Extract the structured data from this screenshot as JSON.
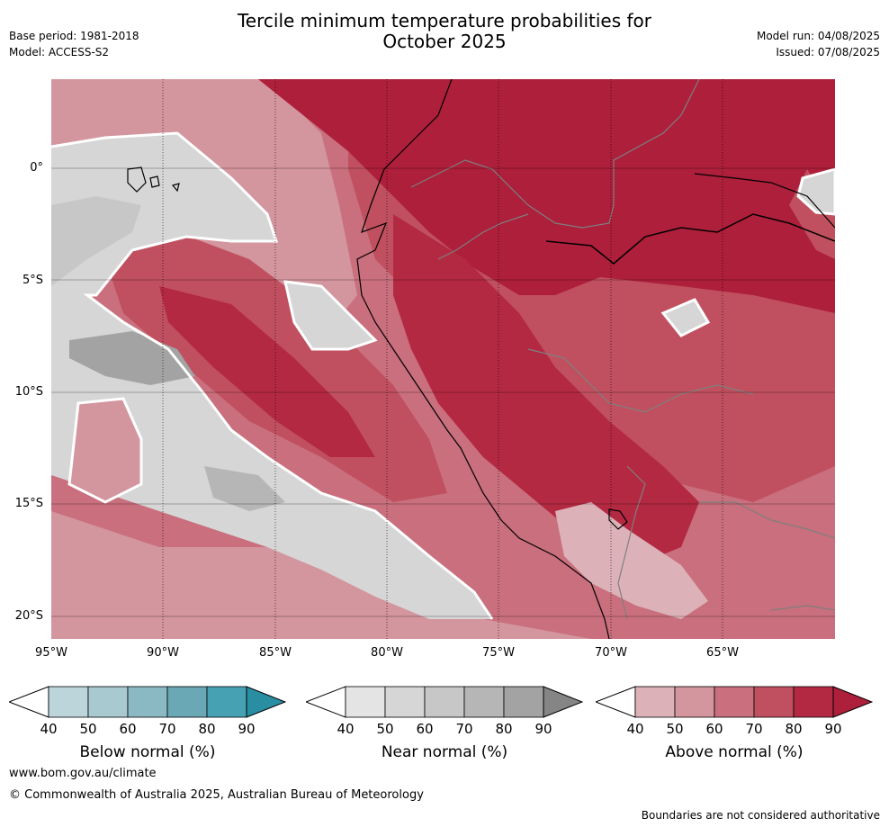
{
  "header": {
    "title_line1": "Tercile minimum temperature probabilities for",
    "title_line2": "October 2025",
    "base_period": "Base period: 1981-2018",
    "model": "Model: ACCESS-S2",
    "model_run": "Model run: 04/08/2025",
    "issued": "Issued: 07/08/2025"
  },
  "map": {
    "lat_labels": [
      "0°",
      "5°S",
      "10°S",
      "15°S",
      "20°S"
    ],
    "lon_labels": [
      "95°W",
      "90°W",
      "85°W",
      "80°W",
      "75°W",
      "70°W",
      "65°W"
    ],
    "colors": {
      "above_40": "#dcb2b8",
      "above_50": "#d3959e",
      "above_60": "#c96f7d",
      "above_70": "#c0505f",
      "above_80": "#b42942",
      "above_90": "#ad1f3b",
      "near_40": "#e4e4e4",
      "near_50": "#d6d6d6",
      "near_60": "#c7c7c7",
      "near_70": "#b6b6b6",
      "near_80": "#a3a3a3"
    }
  },
  "colorbars": [
    {
      "label": "Below normal (%)",
      "ticks": [
        "40",
        "50",
        "60",
        "70",
        "80",
        "90"
      ],
      "colors": [
        "#bcd5da",
        "#a7c9cf",
        "#8bb9c3",
        "#6aa8b5",
        "#46a2b3",
        "#2a8ea3"
      ]
    },
    {
      "label": "Near normal (%)",
      "ticks": [
        "40",
        "50",
        "60",
        "70",
        "80",
        "90"
      ],
      "colors": [
        "#e4e4e4",
        "#d6d6d6",
        "#c7c7c7",
        "#b6b6b6",
        "#a3a3a3",
        "#858585"
      ]
    },
    {
      "label": "Above normal (%)",
      "ticks": [
        "40",
        "50",
        "60",
        "70",
        "80",
        "90"
      ],
      "colors": [
        "#dcb2b8",
        "#d3959e",
        "#c96f7d",
        "#c0505f",
        "#b42942",
        "#ad1f3b"
      ]
    }
  ],
  "footer": {
    "url": "www.bom.gov.au/climate",
    "copyright": "© Commonwealth of Australia 2025, Australian Bureau of Meteorology",
    "disclaimer": "Boundaries are not considered authoritative"
  }
}
